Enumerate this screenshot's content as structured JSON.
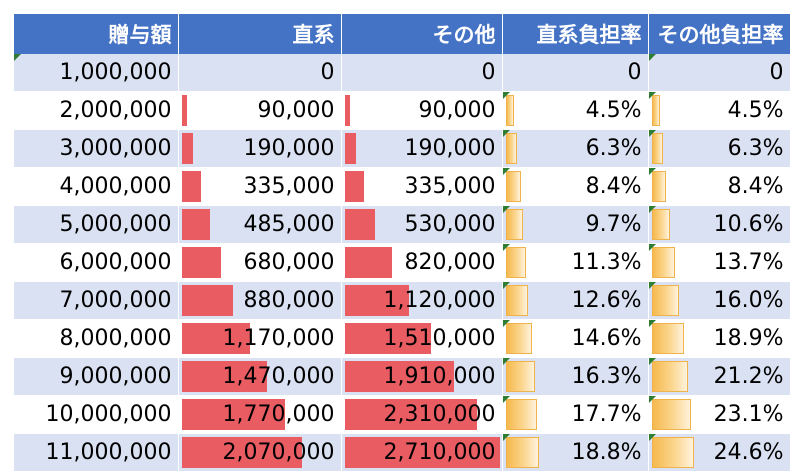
{
  "headers": [
    "贈与額",
    "直系",
    "その他",
    "直系負担率",
    "その他負担率"
  ],
  "rows": [
    {
      "amount": "1,000,000",
      "direct": "0",
      "other": "0",
      "direct_rate": "0",
      "other_rate": "0"
    },
    {
      "amount": "2,000,000",
      "direct": "90,000",
      "other": "90,000",
      "direct_rate": "4.5%",
      "other_rate": "4.5%"
    },
    {
      "amount": "3,000,000",
      "direct": "190,000",
      "other": "190,000",
      "direct_rate": "6.3%",
      "other_rate": "6.3%"
    },
    {
      "amount": "4,000,000",
      "direct": "335,000",
      "other": "335,000",
      "direct_rate": "8.4%",
      "other_rate": "8.4%"
    },
    {
      "amount": "5,000,000",
      "direct": "485,000",
      "other": "530,000",
      "direct_rate": "9.7%",
      "other_rate": "10.6%"
    },
    {
      "amount": "6,000,000",
      "direct": "680,000",
      "other": "820,000",
      "direct_rate": "11.3%",
      "other_rate": "13.7%"
    },
    {
      "amount": "7,000,000",
      "direct": "880,000",
      "other": "1,120,000",
      "direct_rate": "12.6%",
      "other_rate": "16.0%"
    },
    {
      "amount": "8,000,000",
      "direct": "1,170,000",
      "other": "1,510,000",
      "direct_rate": "14.6%",
      "other_rate": "18.9%"
    },
    {
      "amount": "9,000,000",
      "direct": "1,470,000",
      "other": "1,910,000",
      "direct_rate": "16.3%",
      "other_rate": "21.2%"
    },
    {
      "amount": "10,000,000",
      "direct": "1,770,000",
      "other": "2,310,000",
      "direct_rate": "17.7%",
      "other_rate": "23.1%"
    },
    {
      "amount": "11,000,000",
      "direct": "2,070,000",
      "other": "2,710,000",
      "direct_rate": "18.8%",
      "other_rate": "24.6%"
    }
  ],
  "data_bars": {
    "direct": {
      "color": "#e85c62",
      "max_value": 2710000
    },
    "other": {
      "color": "#e85c62",
      "max_value": 2710000
    },
    "direct_rate": {
      "color": "#f6b94e",
      "max_value": 0.8
    },
    "other_rate": {
      "color": "#f6b94e",
      "max_value": 0.8
    }
  },
  "colors": {
    "header_bg": "#4472c4",
    "band_bg": "#d9e1f2",
    "error_flag": "#2e7d32"
  }
}
